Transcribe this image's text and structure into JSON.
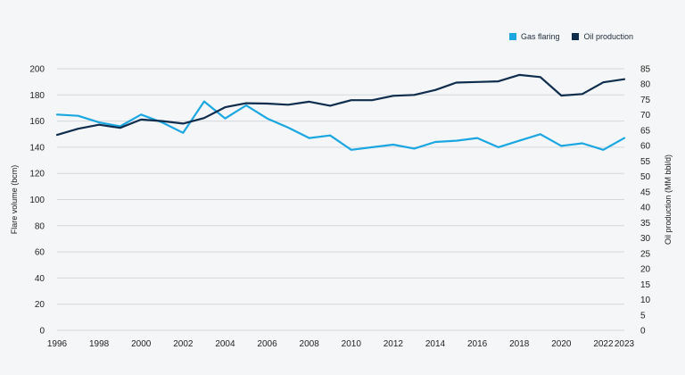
{
  "chart_data": {
    "type": "line",
    "title": "",
    "xlabel": "",
    "ylabel": "Flare volume (bcm)",
    "y2label": "Oil production (MM bbl/d)",
    "xlim": [
      1996,
      2023
    ],
    "ylim": [
      0,
      200
    ],
    "y2lim": [
      0,
      85
    ],
    "x_ticks": [
      "1996",
      "1998",
      "2000",
      "2002",
      "2004",
      "2006",
      "2008",
      "2010",
      "2012",
      "2014",
      "2016",
      "2018",
      "2020",
      "2022",
      "2023"
    ],
    "y_ticks": [
      "0",
      "20",
      "40",
      "60",
      "80",
      "100",
      "120",
      "140",
      "160",
      "180",
      "200"
    ],
    "y2_ticks": [
      "0",
      "5",
      "10",
      "15",
      "20",
      "25",
      "30",
      "35",
      "40",
      "45",
      "50",
      "55",
      "60",
      "65",
      "70",
      "75",
      "80",
      "85"
    ],
    "grid": "horizontal",
    "legend_position": "top-right",
    "series": [
      {
        "name": "Gas flaring",
        "axis": "left",
        "color": "#1aa7e1",
        "x": [
          1996,
          1997,
          1998,
          1999,
          2000,
          2001,
          2002,
          2003,
          2004,
          2005,
          2006,
          2007,
          2008,
          2009,
          2010,
          2011,
          2012,
          2013,
          2014,
          2015,
          2016,
          2017,
          2018,
          2019,
          2020,
          2021,
          2022,
          2023
        ],
        "y": [
          165,
          164,
          159,
          156,
          165,
          159,
          151,
          175,
          162,
          172,
          162,
          155,
          147,
          149,
          138,
          140,
          142,
          139,
          144,
          145,
          147,
          140,
          145,
          150,
          141,
          143,
          138,
          147
        ]
      },
      {
        "name": "Oil production",
        "axis": "right",
        "color": "#0f2d4d",
        "x": [
          1996,
          1997,
          1998,
          1999,
          2000,
          2001,
          2002,
          2003,
          2004,
          2005,
          2006,
          2007,
          2008,
          2009,
          2010,
          2011,
          2012,
          2013,
          2014,
          2015,
          2016,
          2017,
          2018,
          2019,
          2020,
          2021,
          2022,
          2023
        ],
        "y": [
          63.5,
          65.5,
          66.8,
          65.8,
          68.5,
          68.0,
          67.2,
          69.0,
          72.5,
          73.8,
          73.7,
          73.3,
          74.3,
          73.0,
          74.8,
          74.8,
          76.2,
          76.5,
          78.1,
          80.5,
          80.7,
          80.9,
          83.0,
          82.3,
          76.3,
          76.8,
          80.6,
          81.6
        ]
      }
    ]
  }
}
